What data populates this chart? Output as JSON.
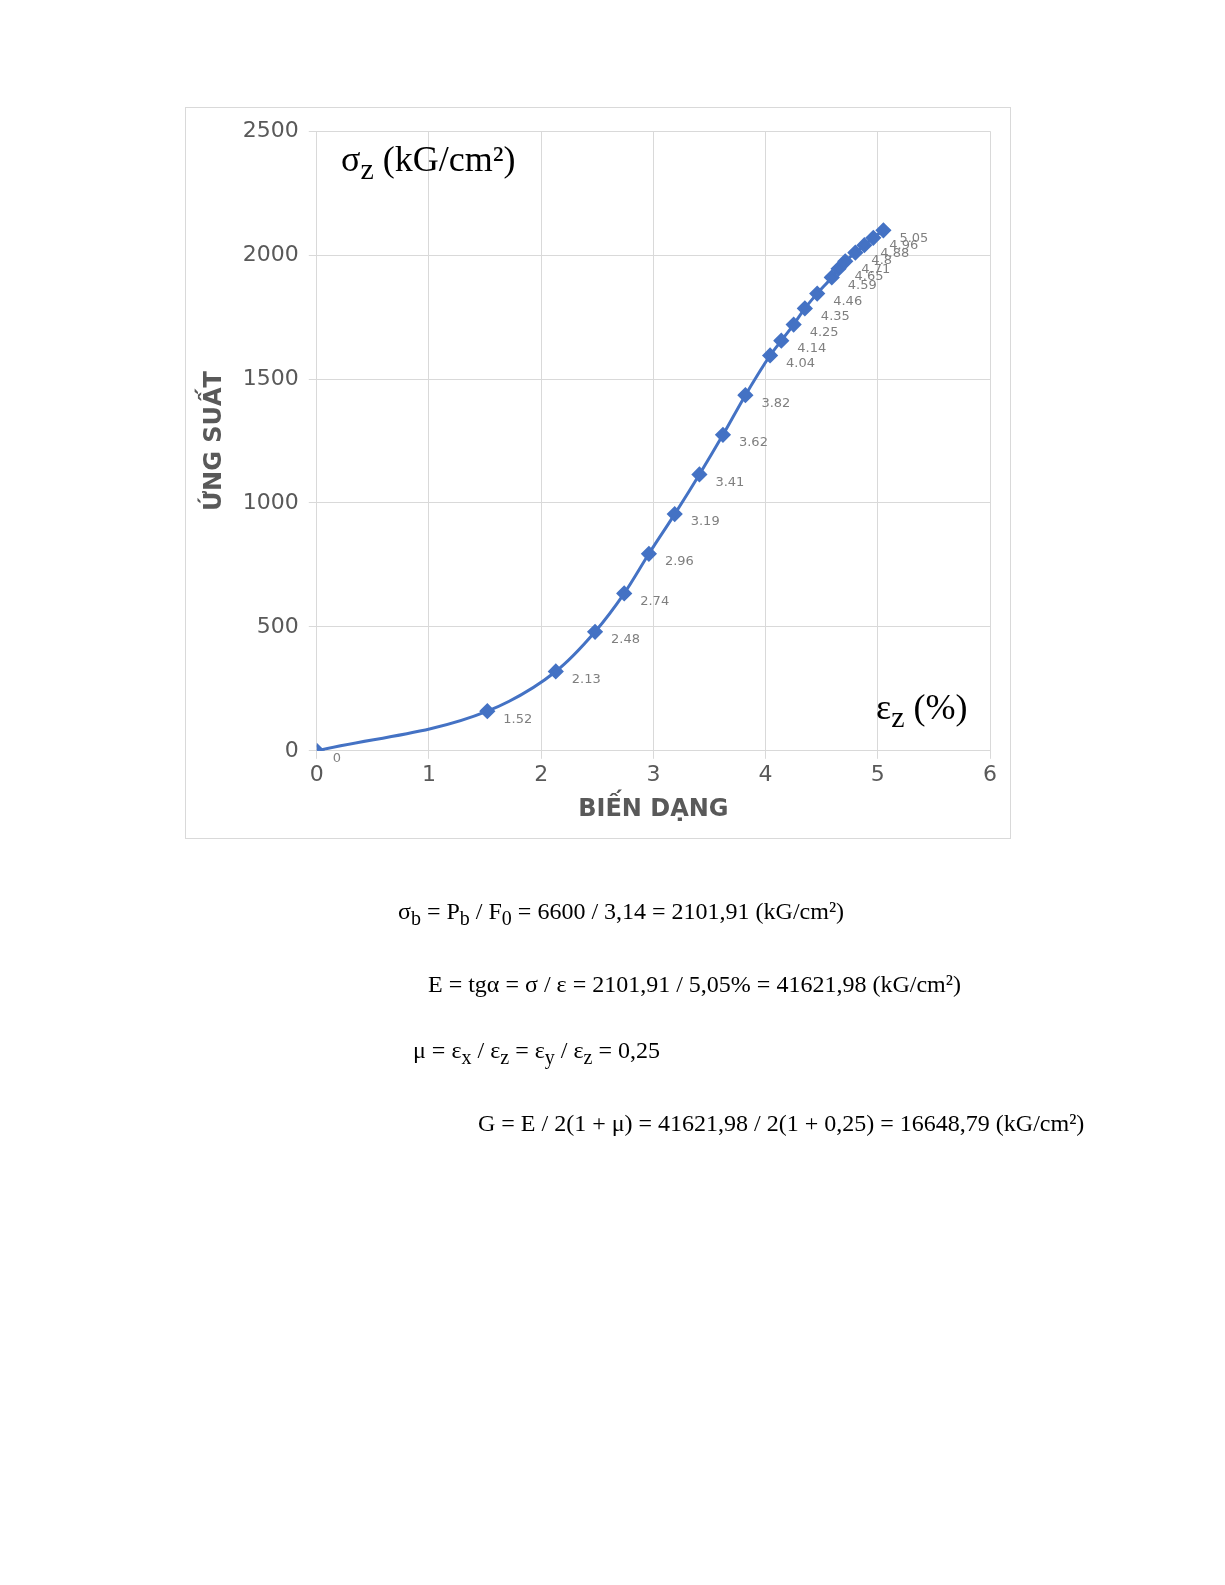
{
  "chart_data": {
    "type": "line",
    "xlabel": "BIẾN DẠNG",
    "ylabel": "ỨNG SUẤT",
    "x": [
      0,
      1.52,
      2.13,
      2.48,
      2.74,
      2.96,
      3.19,
      3.41,
      3.62,
      3.82,
      4.04,
      4.14,
      4.25,
      4.35,
      4.46,
      4.59,
      4.65,
      4.71,
      4.8,
      4.88,
      4.96,
      5.05
    ],
    "series": [
      {
        "color": "#4472c4",
        "values": [
          0,
          160,
          320,
          480,
          635,
          795,
          955,
          1115,
          1275,
          1435,
          1595,
          1655,
          1720,
          1785,
          1845,
          1910,
          1945,
          1975,
          2010,
          2040,
          2070,
          2100
        ]
      }
    ],
    "xlim": [
      0,
      6
    ],
    "xticks": [
      0,
      1,
      2,
      3,
      4,
      5,
      6
    ],
    "ylim": [
      0,
      2500
    ],
    "yticks": [
      0,
      500,
      1000,
      1500,
      2000,
      2500
    ],
    "grid": true,
    "legend": false,
    "marker": "diamond",
    "line_style": "solid",
    "annotations": [
      "σ$_{z}$ (kG/cm²)",
      "ε$_{z}$ (%)",
      "σ$_{b}$ = P$_{b}$ / F$_{0}$ = 6600 / 3,14 = 2101,91 (kG/cm²)",
      "E = tgα = σ / ε = 2101,91 / 5,05% = 41621,98 (kG/cm²)",
      "μ = ε$_{x}$ / ε$_{z}$ = ε$_{y}$ / ε$_{z}$ = 0,25",
      "G = E / 2(1 + μ) = 41621,98 / 2(1 + 0,25) = 16648,79 (kG/cm²)",
      {
        "text": "0",
        "x": 0,
        "y": 0
      },
      {
        "text": "1.52",
        "x": 1.52,
        "y": 160
      },
      {
        "text": "2.13",
        "x": 2.13,
        "y": 320
      },
      {
        "text": "2.48",
        "x": 2.48,
        "y": 480
      },
      {
        "text": "2.74",
        "x": 2.74,
        "y": 635
      },
      {
        "text": "2.96",
        "x": 2.96,
        "y": 795
      },
      {
        "text": "3.19",
        "x": 3.19,
        "y": 955
      },
      {
        "text": "3.41",
        "x": 3.41,
        "y": 1115
      },
      {
        "text": "3.62",
        "x": 3.62,
        "y": 1275
      },
      {
        "text": "3.82",
        "x": 3.82,
        "y": 1435
      },
      {
        "text": "4.04",
        "x": 4.04,
        "y": 1595
      },
      {
        "text": "4.14",
        "x": 4.14,
        "y": 1655
      },
      {
        "text": "4.25",
        "x": 4.25,
        "y": 1720
      },
      {
        "text": "4.35",
        "x": 4.35,
        "y": 1785
      },
      {
        "text": "4.46",
        "x": 4.46,
        "y": 1845
      },
      {
        "text": "4.59",
        "x": 4.59,
        "y": 1910
      },
      {
        "text": "4.65",
        "x": 4.65,
        "y": 1945
      },
      {
        "text": "4.71",
        "x": 4.71,
        "y": 1975
      },
      {
        "text": "4.8",
        "x": 4.8,
        "y": 2010
      },
      {
        "text": "4.88",
        "x": 4.88,
        "y": 2040
      },
      {
        "text": "4.96",
        "x": 4.96,
        "y": 2070
      },
      {
        "text": "5.05",
        "x": 5.05,
        "y": 2100
      }
    ]
  }
}
